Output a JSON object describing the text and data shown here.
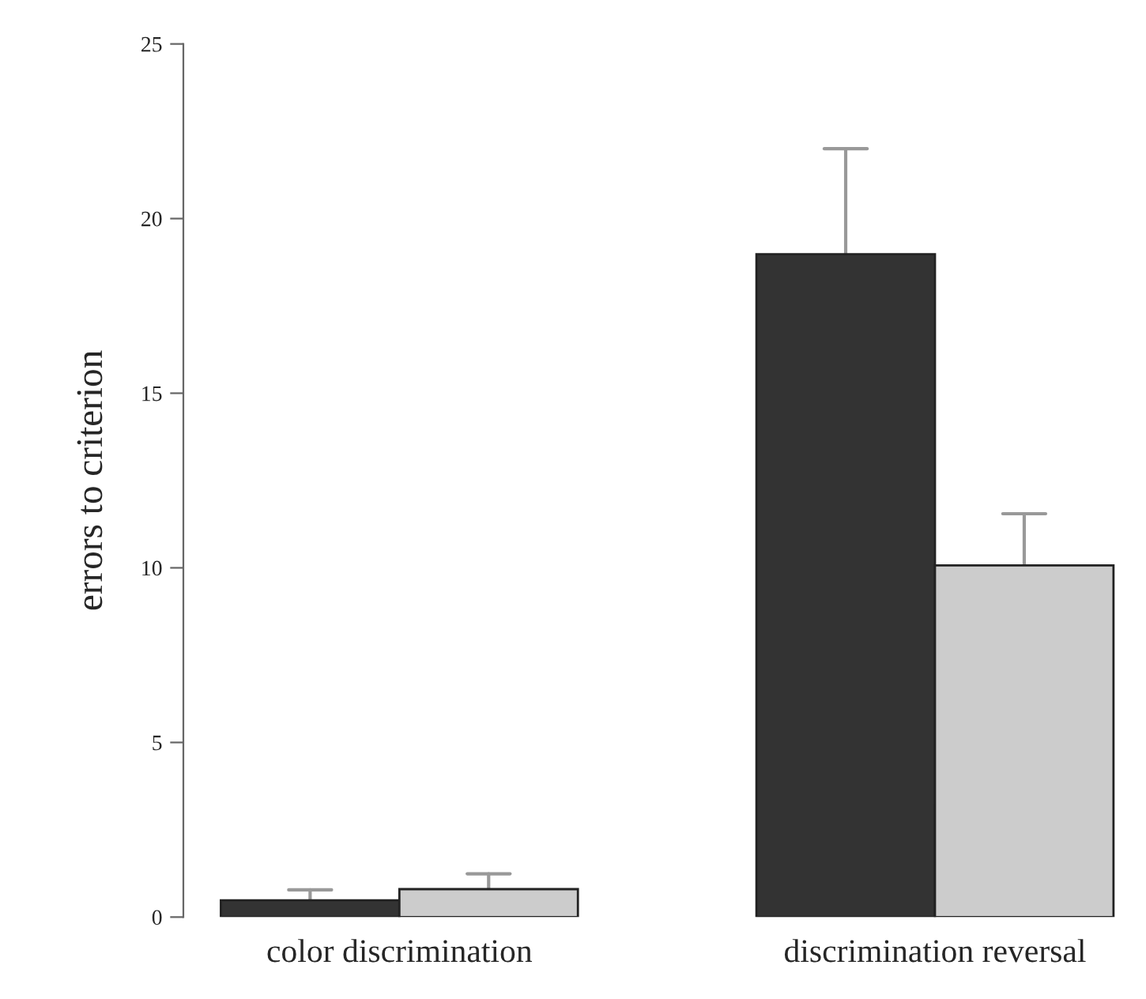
{
  "chart_data": {
    "type": "bar",
    "ylabel": "errors to criterion",
    "categories": [
      "color discrimination",
      "discrimination reversal"
    ],
    "series": [
      {
        "color": "#333333",
        "values": [
          0.48,
          18.98
        ],
        "errors": [
          [
            0.48,
            0.78
          ],
          [
            18.98,
            22.0
          ]
        ]
      },
      {
        "color": "#cccccc",
        "values": [
          0.8,
          10.07
        ],
        "errors": [
          [
            0.8,
            1.24
          ],
          [
            10.07,
            11.55
          ]
        ]
      }
    ],
    "ylim": [
      0,
      25
    ],
    "yticks": [
      0,
      5,
      10,
      15,
      20,
      25
    ],
    "grid": false,
    "legend": false
  }
}
